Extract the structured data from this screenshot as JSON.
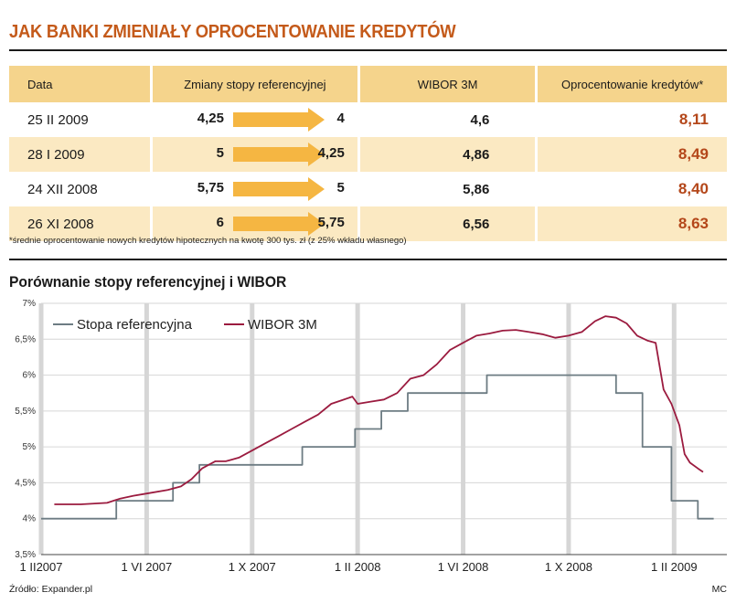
{
  "title": "JAK BANKI ZMIENIAŁY OPROCENTOWANIE KREDYTÓW",
  "colors": {
    "accent": "#c45a1a",
    "header_bg": "#f5d48c",
    "row_shade": "#fbe9c2",
    "arrow": "#f5b642",
    "ref_line": "#6d7c83",
    "wibor_line": "#9b1b3f"
  },
  "table": {
    "headers": [
      "Data",
      "Zmiany stopy referencyjnej",
      "WIBOR 3M",
      "Oprocentowanie kredytów*"
    ],
    "rows": [
      {
        "date": "25 II 2009",
        "ref_from": "4,25",
        "ref_to": "4",
        "wibor": "4,6",
        "rate": "8,11"
      },
      {
        "date": "28 I 2009",
        "ref_from": "5",
        "ref_to": "4,25",
        "wibor": "4,86",
        "rate": "8,49"
      },
      {
        "date": "24 XII 2008",
        "ref_from": "5,75",
        "ref_to": "5",
        "wibor": "5,86",
        "rate": "8,40"
      },
      {
        "date": "26 XI 2008",
        "ref_from": "6",
        "ref_to": "5,75",
        "wibor": "6,56",
        "rate": "8,63"
      }
    ],
    "footnote": "*średnie oprocentowanie nowych kredytów hipotecznych na kwotę 300 tys. zł (z 25% wkładu własnego)"
  },
  "chart_data": {
    "type": "line",
    "title": "Porównanie stopy referencyjnej  i WIBOR",
    "xlabel": "",
    "ylabel": "",
    "xlim": [
      0,
      26
    ],
    "ylim": [
      3.5,
      7
    ],
    "x_ticks": [
      0,
      4,
      8,
      12,
      16,
      20,
      24
    ],
    "x_tick_labels": [
      "1 II2007",
      "1 VI 2007",
      "1 X 2007",
      "1 II 2008",
      "1 VI 2008",
      "1 X 2008",
      "1 II 2009"
    ],
    "y_ticks": [
      3.5,
      4,
      4.5,
      5,
      5.5,
      6,
      6.5,
      7
    ],
    "y_tick_labels": [
      "3,5%",
      "4%",
      "4,5%",
      "5%",
      "5,5%",
      "6%",
      "6,5%",
      "7%"
    ],
    "legend_position": "top-left",
    "series": [
      {
        "name": "Stopa referencyjna",
        "color": "#6d7c83",
        "points": [
          [
            0,
            4.0
          ],
          [
            2.85,
            4.0
          ],
          [
            2.85,
            4.25
          ],
          [
            5.0,
            4.25
          ],
          [
            5.0,
            4.5
          ],
          [
            6.0,
            4.5
          ],
          [
            6.0,
            4.75
          ],
          [
            9.9,
            4.75
          ],
          [
            9.9,
            5.0
          ],
          [
            11.9,
            5.0
          ],
          [
            11.9,
            5.25
          ],
          [
            12.9,
            5.25
          ],
          [
            12.9,
            5.5
          ],
          [
            13.9,
            5.5
          ],
          [
            13.9,
            5.75
          ],
          [
            16.9,
            5.75
          ],
          [
            16.9,
            6.0
          ],
          [
            21.8,
            6.0
          ],
          [
            21.8,
            5.75
          ],
          [
            22.8,
            5.75
          ],
          [
            22.8,
            5.0
          ],
          [
            23.9,
            5.0
          ],
          [
            23.9,
            4.25
          ],
          [
            24.9,
            4.25
          ],
          [
            24.9,
            4.0
          ],
          [
            25.5,
            4.0
          ]
        ]
      },
      {
        "name": "WIBOR 3M",
        "color": "#9b1b3f",
        "points": [
          [
            0.5,
            4.2
          ],
          [
            1.5,
            4.2
          ],
          [
            2.5,
            4.22
          ],
          [
            3.0,
            4.28
          ],
          [
            3.5,
            4.32
          ],
          [
            4.0,
            4.35
          ],
          [
            4.8,
            4.4
          ],
          [
            5.3,
            4.45
          ],
          [
            5.7,
            4.55
          ],
          [
            6.1,
            4.7
          ],
          [
            6.6,
            4.8
          ],
          [
            7.0,
            4.8
          ],
          [
            7.5,
            4.85
          ],
          [
            8.0,
            4.95
          ],
          [
            8.5,
            5.05
          ],
          [
            9.0,
            5.15
          ],
          [
            9.5,
            5.25
          ],
          [
            10.0,
            5.35
          ],
          [
            10.5,
            5.45
          ],
          [
            11.0,
            5.6
          ],
          [
            11.4,
            5.65
          ],
          [
            11.8,
            5.7
          ],
          [
            12.0,
            5.6
          ],
          [
            12.5,
            5.63
          ],
          [
            13.0,
            5.66
          ],
          [
            13.5,
            5.75
          ],
          [
            14.0,
            5.95
          ],
          [
            14.5,
            6.0
          ],
          [
            15.0,
            6.15
          ],
          [
            15.5,
            6.35
          ],
          [
            16.0,
            6.45
          ],
          [
            16.5,
            6.55
          ],
          [
            17.0,
            6.58
          ],
          [
            17.5,
            6.62
          ],
          [
            18.0,
            6.63
          ],
          [
            18.5,
            6.6
          ],
          [
            19.0,
            6.57
          ],
          [
            19.5,
            6.52
          ],
          [
            20.0,
            6.55
          ],
          [
            20.5,
            6.6
          ],
          [
            21.0,
            6.75
          ],
          [
            21.4,
            6.82
          ],
          [
            21.8,
            6.8
          ],
          [
            22.2,
            6.72
          ],
          [
            22.6,
            6.55
          ],
          [
            23.0,
            6.48
          ],
          [
            23.3,
            6.45
          ],
          [
            23.6,
            5.8
          ],
          [
            23.9,
            5.6
          ],
          [
            24.2,
            5.3
          ],
          [
            24.4,
            4.9
          ],
          [
            24.6,
            4.78
          ],
          [
            24.9,
            4.7
          ],
          [
            25.1,
            4.65
          ]
        ]
      }
    ]
  },
  "source": "Źródło: Expander.pl",
  "credit": "MC"
}
